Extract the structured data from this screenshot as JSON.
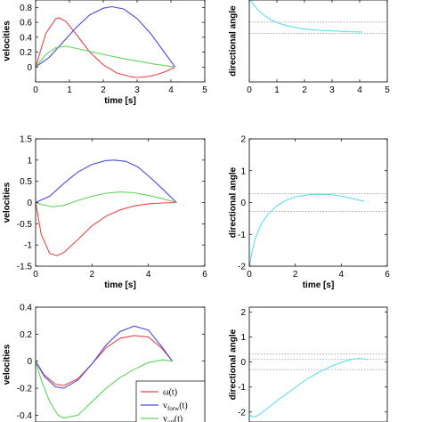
{
  "chart_data": [
    {
      "type": "line",
      "ylabel": "velocities",
      "xlabel": "time [s]",
      "xlim": [
        0,
        5
      ],
      "ylim": [
        -0.2,
        0.9
      ],
      "xticks": [
        0,
        1,
        2,
        3,
        4,
        5
      ],
      "yticks": [
        0,
        0.2,
        0.4,
        0.6,
        0.8
      ],
      "series": [
        {
          "key": "omega",
          "color": "#e8474a",
          "x": [
            0,
            0.3,
            0.6,
            0.7,
            0.9,
            1.2,
            1.6,
            2.0,
            2.4,
            2.8,
            3.0,
            3.3,
            3.6,
            3.9,
            4.12
          ],
          "values": [
            0,
            0.45,
            0.65,
            0.66,
            0.61,
            0.44,
            0.2,
            0.03,
            -0.08,
            -0.13,
            -0.14,
            -0.13,
            -0.1,
            -0.05,
            0
          ]
        },
        {
          "key": "v_forw",
          "color": "#4b4bdc",
          "x": [
            0,
            0.4,
            0.8,
            1.2,
            1.6,
            2.0,
            2.25,
            2.6,
            3.0,
            3.4,
            3.8,
            4.12
          ],
          "values": [
            0,
            0.13,
            0.33,
            0.53,
            0.7,
            0.79,
            0.81,
            0.78,
            0.65,
            0.45,
            0.2,
            0
          ]
        },
        {
          "key": "v_ort",
          "color": "#5fd45f",
          "x": [
            0,
            0.3,
            0.6,
            0.9,
            1.2,
            1.6,
            2.0,
            2.5,
            3.0,
            3.5,
            4.12
          ],
          "values": [
            0,
            0.17,
            0.26,
            0.28,
            0.25,
            0.21,
            0.17,
            0.12,
            0.08,
            0.04,
            0
          ]
        }
      ],
      "ref_lines": []
    },
    {
      "type": "line",
      "ylabel": "directional angle",
      "xlabel": "",
      "xlim": [
        0,
        5
      ],
      "ylim": [
        -0.9,
        0.4
      ],
      "xticks": [
        0,
        1,
        2,
        3,
        4,
        5
      ],
      "yticks": [],
      "series": [
        {
          "key": "angle",
          "color": "#5ee0e8",
          "x": [
            0.02,
            0.15,
            0.3,
            0.5,
            0.8,
            1.0,
            1.3,
            1.6,
            2.0,
            2.5,
            3.0,
            3.5,
            4.1
          ],
          "values": [
            0.42,
            0.33,
            0.25,
            0.17,
            0.08,
            0.04,
            0.0,
            -0.03,
            -0.06,
            -0.08,
            -0.09,
            -0.1,
            -0.11
          ]
        }
      ],
      "ref_lines": [
        0.05,
        -0.13
      ]
    },
    {
      "type": "line",
      "ylabel": "velocities",
      "xlabel": "time [s]",
      "xlim": [
        0,
        6
      ],
      "ylim": [
        -1.5,
        1.5
      ],
      "xticks": [
        0,
        2,
        4,
        6
      ],
      "yticks": [
        -1.5,
        -1,
        -0.5,
        0,
        0.5,
        1,
        1.5
      ],
      "series": [
        {
          "key": "omega",
          "color": "#e8474a",
          "x": [
            0,
            0.2,
            0.5,
            0.75,
            1.0,
            1.5,
            2.0,
            2.5,
            3.0,
            3.5,
            4.0,
            4.5,
            5.0
          ],
          "values": [
            0,
            -0.75,
            -1.2,
            -1.25,
            -1.18,
            -0.87,
            -0.55,
            -0.32,
            -0.17,
            -0.08,
            -0.03,
            -0.01,
            0
          ]
        },
        {
          "key": "v_forw",
          "color": "#4b4bdc",
          "x": [
            0,
            0.5,
            1.0,
            1.5,
            2.0,
            2.5,
            2.8,
            3.2,
            3.6,
            4.0,
            4.5,
            5.0
          ],
          "values": [
            0,
            0.15,
            0.45,
            0.72,
            0.9,
            0.99,
            1.0,
            0.97,
            0.85,
            0.63,
            0.32,
            0
          ]
        },
        {
          "key": "v_ort",
          "color": "#5fd45f",
          "x": [
            0,
            0.3,
            0.6,
            1.0,
            1.5,
            2.0,
            2.5,
            3.0,
            3.5,
            4.0,
            4.5,
            5.0
          ],
          "values": [
            0,
            -0.06,
            -0.1,
            -0.07,
            0.05,
            0.15,
            0.22,
            0.25,
            0.23,
            0.17,
            0.09,
            0
          ]
        }
      ],
      "ref_lines": []
    },
    {
      "type": "line",
      "ylabel": "directional angle",
      "xlabel": "time [s]",
      "xlim": [
        0,
        6
      ],
      "ylim": [
        -2,
        2
      ],
      "xticks": [
        0,
        2,
        4,
        6
      ],
      "yticks": [
        -2,
        -1,
        0,
        1,
        2
      ],
      "series": [
        {
          "key": "angle",
          "color": "#5ee0e8",
          "x": [
            0.02,
            0.1,
            0.25,
            0.5,
            0.8,
            1.2,
            1.6,
            2.0,
            2.5,
            3.0,
            3.5,
            4.0,
            4.5,
            5.0
          ],
          "values": [
            -2.0,
            -1.6,
            -1.15,
            -0.7,
            -0.38,
            -0.1,
            0.07,
            0.18,
            0.24,
            0.26,
            0.25,
            0.2,
            0.12,
            0.04
          ]
        }
      ],
      "ref_lines": [
        0.28,
        -0.28
      ]
    },
    {
      "type": "line",
      "ylabel": "velocities",
      "xlabel": "",
      "xlim": [
        0,
        6
      ],
      "ylim": [
        -0.45,
        0.4
      ],
      "xticks": [],
      "yticks": [
        -0.4,
        -0.2,
        0,
        0.2,
        0.4
      ],
      "series": [
        {
          "key": "omega",
          "color": "#e8474a",
          "x": [
            0,
            0.3,
            0.7,
            1.0,
            1.5,
            2.0,
            2.5,
            3.0,
            3.5,
            4.0,
            4.5,
            4.85
          ],
          "values": [
            0,
            -0.1,
            -0.17,
            -0.18,
            -0.13,
            -0.02,
            0.1,
            0.17,
            0.19,
            0.18,
            0.09,
            0
          ]
        },
        {
          "key": "v_forw",
          "color": "#4b4bdc",
          "x": [
            0,
            0.3,
            0.7,
            1.0,
            1.5,
            2.0,
            2.5,
            3.0,
            3.5,
            4.0,
            4.5,
            4.85
          ],
          "values": [
            0,
            -0.11,
            -0.19,
            -0.2,
            -0.14,
            -0.02,
            0.12,
            0.22,
            0.26,
            0.23,
            0.1,
            0
          ]
        },
        {
          "key": "v_ort",
          "color": "#5fd45f",
          "x": [
            0,
            0.2,
            0.5,
            0.8,
            1.0,
            1.5,
            2.0,
            2.5,
            3.0,
            3.5,
            4.0,
            4.5,
            4.85
          ],
          "values": [
            0,
            -0.14,
            -0.3,
            -0.4,
            -0.42,
            -0.4,
            -0.3,
            -0.2,
            -0.12,
            -0.06,
            -0.01,
            0.01,
            0
          ]
        }
      ],
      "ref_lines": [],
      "legend": {
        "location": "lower-right",
        "entries": [
          {
            "series": "omega",
            "label": "ω(t)",
            "color": "#e8474a"
          },
          {
            "series": "v_forw",
            "label": "v",
            "sub": "forw",
            "suffix": "(t)",
            "color": "#4b4bdc"
          },
          {
            "series": "v_ort",
            "label": "v",
            "sub": "ort",
            "suffix": "(t)",
            "color": "#5fd45f"
          }
        ]
      }
    },
    {
      "type": "line",
      "ylabel": "directional angle",
      "xlabel": "",
      "xlim": [
        0,
        5
      ],
      "ylim": [
        -2.4,
        2.2
      ],
      "xticks": [],
      "yticks": [
        -2,
        -1,
        0,
        1,
        2
      ],
      "series": [
        {
          "key": "angle",
          "color": "#5ee0e8",
          "x": [
            0.02,
            0.1,
            0.3,
            0.6,
            1.0,
            1.5,
            2.0,
            2.5,
            3.0,
            3.5,
            3.8,
            4.0,
            4.3
          ],
          "values": [
            -2.1,
            -2.2,
            -2.15,
            -1.9,
            -1.55,
            -1.15,
            -0.75,
            -0.42,
            -0.15,
            0.05,
            0.12,
            0.15,
            0.1
          ]
        }
      ],
      "ref_lines": [
        0.32,
        0.12,
        -0.3
      ]
    }
  ]
}
